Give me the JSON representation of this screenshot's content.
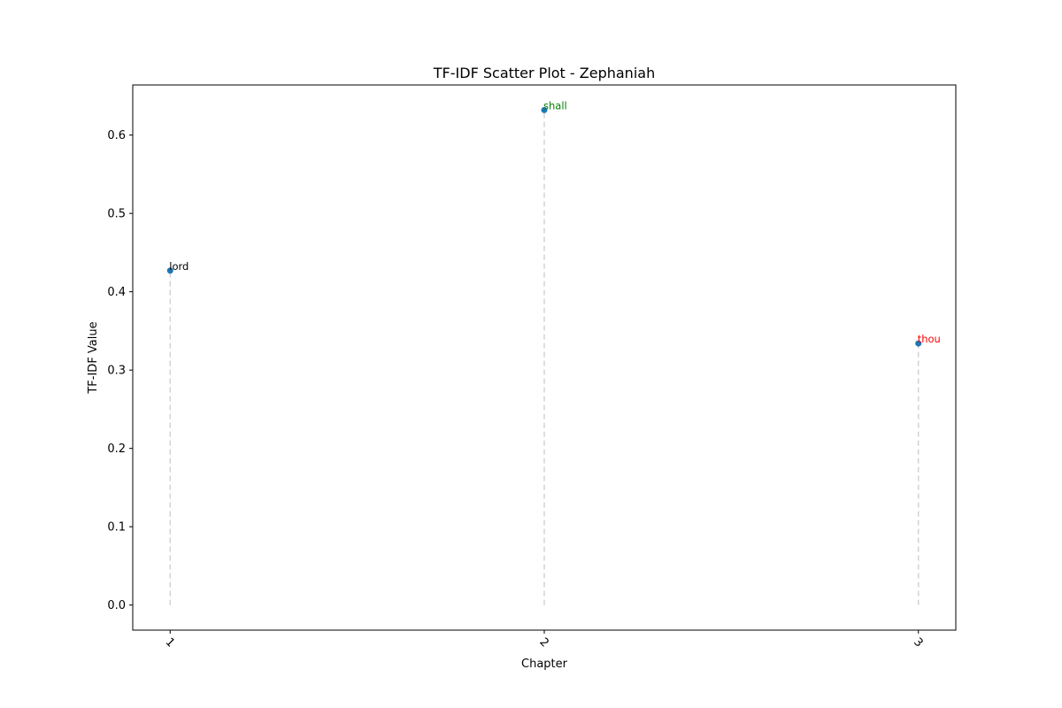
{
  "chart_data": {
    "type": "scatter",
    "title": "TF-IDF Scatter Plot - Zephaniah",
    "xlabel": "Chapter",
    "ylabel": "TF-IDF Value",
    "x": [
      1,
      2,
      3
    ],
    "x_tick_labels": [
      "1",
      "2",
      "3"
    ],
    "x_tick_rotation_deg": 45,
    "y_ticks": [
      0.0,
      0.1,
      0.2,
      0.3,
      0.4,
      0.5,
      0.6
    ],
    "y_tick_labels": [
      "0.0",
      "0.1",
      "0.2",
      "0.3",
      "0.4",
      "0.5",
      "0.6"
    ],
    "xlim": [
      0.9,
      3.1
    ],
    "ylim": [
      -0.032,
      0.664
    ],
    "grid": false,
    "points": [
      {
        "x": 1,
        "y": 0.427,
        "label": "lord",
        "label_color": "#000000"
      },
      {
        "x": 2,
        "y": 0.632,
        "label": "shall",
        "label_color": "#008000"
      },
      {
        "x": 3,
        "y": 0.334,
        "label": "thou",
        "label_color": "#ff0000"
      }
    ],
    "marker_color": "#1f77b4",
    "stem_color": "#d3d3d3",
    "stem_style": "dashed"
  }
}
